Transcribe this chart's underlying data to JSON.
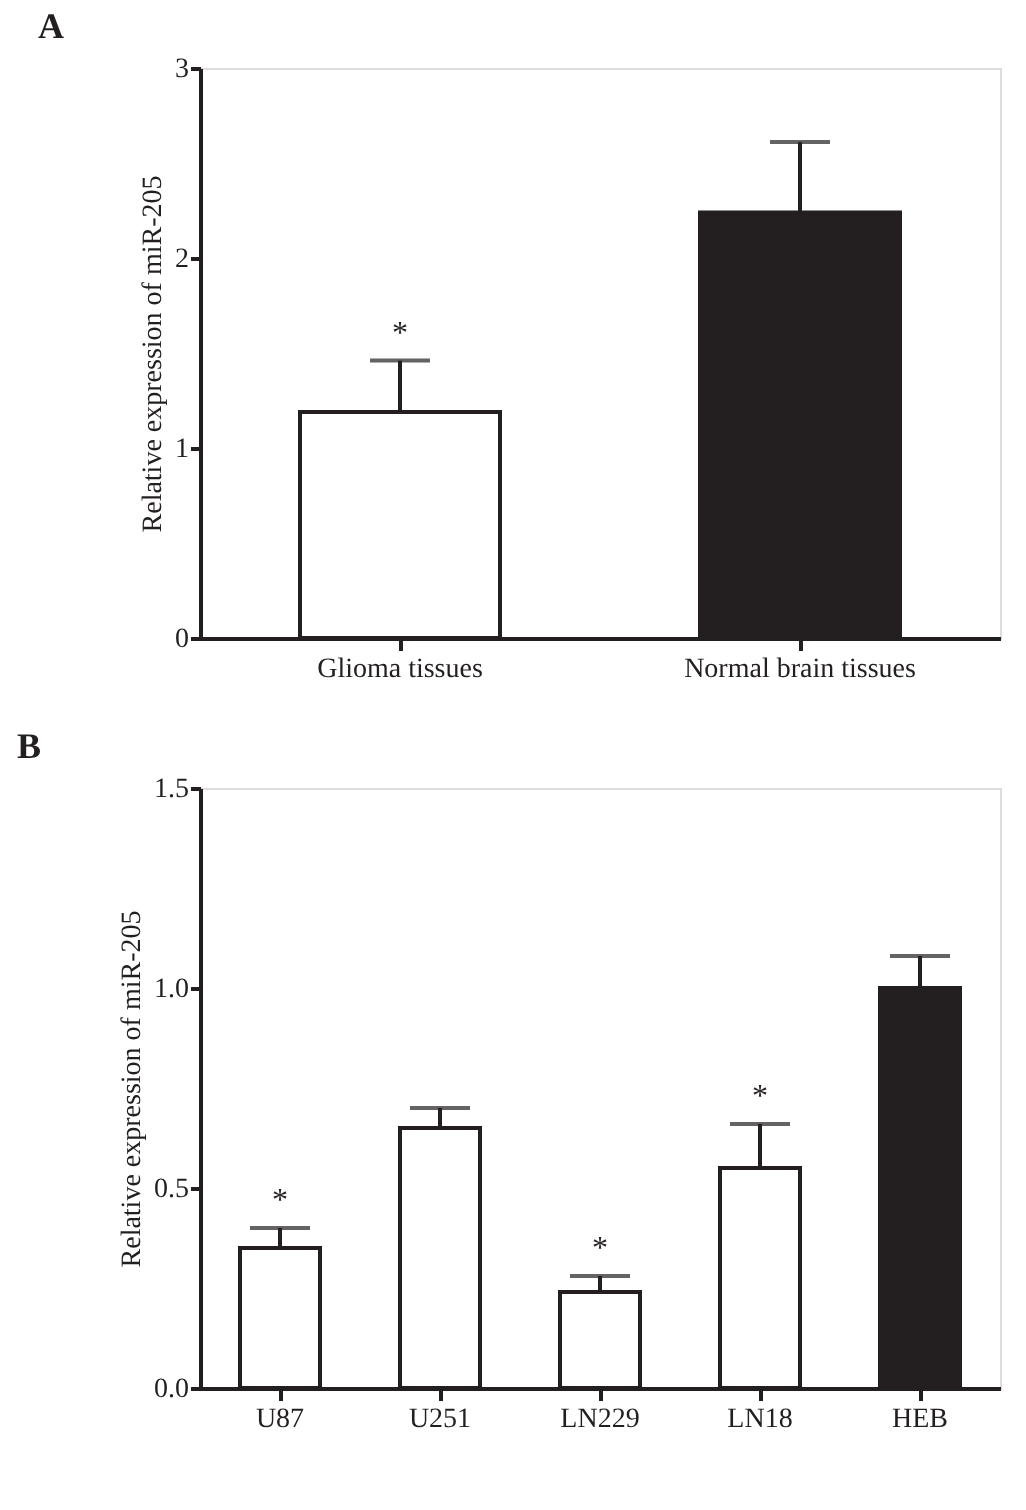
{
  "chart_data": [
    {
      "type": "bar",
      "title": "A",
      "ylabel": "Relative expression of miR-205",
      "categories": [
        "Glioma tissues",
        "Normal brain tissues"
      ],
      "values": [
        1.19,
        2.24
      ],
      "colors": [
        "#ffffff",
        "#231f20"
      ],
      "errors": [
        [
          1.19,
          1.46
        ],
        [
          2.24,
          2.61
        ]
      ],
      "ylim": [
        0,
        3
      ],
      "yticks": [
        0,
        1,
        2,
        3
      ],
      "grid": false,
      "annotations": [
        {
          "text": "*",
          "x": "Glioma tissues",
          "y": 1.46
        }
      ]
    },
    {
      "type": "bar",
      "title": "B",
      "ylabel": "Relative expression of miR-205",
      "categories": [
        "U87",
        "U251",
        "LN229",
        "LN18",
        "HEB"
      ],
      "values": [
        0.35,
        0.65,
        0.24,
        0.55,
        1.0
      ],
      "colors": [
        "#ffffff",
        "#ffffff",
        "#ffffff",
        "#ffffff",
        "#231f20"
      ],
      "errors": [
        [
          0.35,
          0.4
        ],
        [
          0.65,
          0.7
        ],
        [
          0.24,
          0.28
        ],
        [
          0.55,
          0.66
        ],
        [
          1.0,
          1.08
        ]
      ],
      "ylim": [
        0,
        1.5
      ],
      "yticks": [
        {
          "value": 0,
          "label": "0.0"
        },
        0.5,
        {
          "value": 1,
          "label": "1.0"
        },
        1.5
      ],
      "grid": false,
      "annotations": [
        {
          "text": "*",
          "x": "U87",
          "y": 0.4
        },
        {
          "text": "*",
          "x": "LN229",
          "y": 0.28
        },
        {
          "text": "*",
          "x": "LN18",
          "y": 0.66
        }
      ]
    }
  ]
}
